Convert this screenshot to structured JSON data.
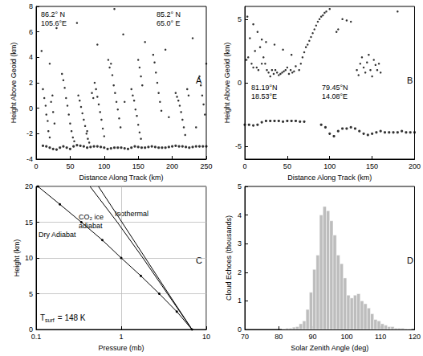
{
  "chart_data": [
    {
      "type": "scatter",
      "label": "A",
      "xlabel": "Distance Along Track (km)",
      "ylabel": "Height Above Geoid (km)",
      "xlim": [
        0,
        250
      ],
      "xticks": [
        0,
        50,
        100,
        150,
        200,
        250
      ],
      "ylim": [
        -4,
        8
      ],
      "yticks": [
        -4,
        -2,
        0,
        2,
        4,
        6,
        8
      ],
      "annotations": [
        "86.2° N\n105.6°E",
        "85.2° N\n65.0° E"
      ],
      "color": "#000000",
      "marker": "circle",
      "series": [
        {
          "x": [
            8,
            10,
            12,
            14,
            15,
            17,
            18,
            20,
            22,
            24,
            25,
            27,
            38,
            40,
            42,
            44,
            46,
            48,
            50,
            52,
            54,
            56,
            62,
            64,
            66,
            68,
            70,
            72,
            74,
            76,
            78,
            82,
            84,
            86,
            88,
            90,
            92,
            94,
            96,
            98,
            100,
            106,
            108,
            110,
            112,
            114,
            116,
            118,
            120,
            122,
            124,
            140,
            142,
            144,
            146,
            148,
            150,
            152,
            154,
            150,
            152,
            154,
            156,
            172,
            174,
            176,
            178,
            180,
            182,
            184,
            205,
            207,
            209,
            211,
            213,
            215,
            217,
            219,
            222,
            224,
            240,
            242,
            244,
            246,
            248,
            250,
            30,
            60,
            115,
            128,
            160,
            190,
            230,
            90,
            20,
            75,
            130,
            195,
            235
          ],
          "y": [
            4.5,
            1.5,
            0.8,
            0.2,
            -0.5,
            -1,
            -1.8,
            -2.3,
            0.5,
            1.0,
            -0.3,
            -1.2,
            2.7,
            2.2,
            1.6,
            0.8,
            0.2,
            -0.5,
            -1.2,
            -1.8,
            -2.3,
            -2.6,
            1.0,
            0.6,
            0.1,
            -0.4,
            -0.9,
            -1.4,
            -2.0,
            -2.4,
            -2.7,
            1.2,
            0.8,
            2.0,
            1.5,
            0.9,
            0.3,
            -0.3,
            -0.9,
            -1.6,
            -2.2,
            3.8,
            3.2,
            3.5,
            2.6,
            1.8,
            1.2,
            0.5,
            -0.1,
            -0.8,
            -1.5,
            1.5,
            1.0,
            0.6,
            -0.1,
            -0.6,
            -1.3,
            -1.9,
            -2.4,
            3.8,
            3.2,
            2.5,
            1.8,
            4.2,
            3.6,
            2.8,
            2.0,
            1.2,
            0.5,
            -0.2,
            1.2,
            0.9,
            0.6,
            0.2,
            -0.3,
            -0.9,
            -1.5,
            -2.1,
            1.5,
            1.0,
            2.5,
            1.8,
            1.0,
            0.3,
            -0.5,
            3.5,
            6.3,
            6.7,
            7.8,
            5.8,
            5.2,
            4.6,
            5.5,
            5.0,
            3.5,
            -1.8,
            0.5,
            -0.7,
            -1.5
          ]
        },
        {
          "x": [
            10,
            15,
            20,
            25,
            30,
            35,
            40,
            45,
            50,
            55,
            60,
            65,
            70,
            75,
            80,
            85,
            90,
            95,
            100,
            105,
            110,
            115,
            120,
            125,
            130,
            135,
            140,
            145,
            150,
            155,
            160,
            165,
            170,
            175,
            180,
            185,
            190,
            195,
            200,
            205,
            210,
            215,
            220,
            225,
            230,
            235,
            240,
            245,
            250
          ],
          "y": [
            -2.95,
            -3.0,
            -3.1,
            -3.2,
            -3.25,
            -3.1,
            -3.0,
            -3.1,
            -3.2,
            -3.0,
            -2.9,
            -2.95,
            -3.0,
            -3.1,
            -3.05,
            -3.0,
            -3.0,
            -3.05,
            -3.1,
            -3.2,
            -3.15,
            -3.1,
            -3.1,
            -3.1,
            -3.15,
            -3.2,
            -3.1,
            -3.0,
            -3.05,
            -3.1,
            -3.1,
            -3.05,
            -3.0,
            -3.05,
            -3.1,
            -3.1,
            -3.1,
            -3.05,
            -3.0,
            -2.95,
            -3.0,
            -3.0,
            -3.05,
            -3.1,
            -3.05,
            -3.0,
            -3.0,
            -3.0,
            -3.0
          ]
        }
      ]
    },
    {
      "type": "scatter",
      "label": "B",
      "xlabel": "Distance Along Track (km)",
      "ylabel": "Height Above Geoid (km)",
      "xlim": [
        0,
        200
      ],
      "xticks": [
        0,
        50,
        100,
        150,
        200
      ],
      "ylim": [
        -6,
        6
      ],
      "yticks": [
        -5,
        0,
        5
      ],
      "annotations": [
        "81.19°N\n18.53°E",
        "79.45°N\n14.08°E"
      ],
      "color": "#000000",
      "marker": "circle",
      "series": [
        {
          "x": [
            2,
            4,
            6,
            8,
            10,
            12,
            14,
            16,
            18,
            20,
            22,
            24,
            26,
            28,
            30,
            32,
            34,
            36,
            38,
            40,
            42,
            44,
            46,
            48,
            50,
            52,
            54,
            56,
            58,
            60,
            10,
            15,
            20,
            25,
            35,
            45,
            55,
            3,
            64,
            66,
            68,
            70,
            72,
            74,
            76,
            78,
            80,
            82,
            84,
            86,
            88,
            90,
            92,
            94,
            96,
            100,
            108,
            110,
            115,
            120,
            125,
            132,
            134,
            136,
            138,
            140,
            142,
            144,
            146,
            148,
            150,
            152,
            154,
            156,
            158,
            160,
            180
          ],
          "y": [
            1.8,
            2.0,
            3.5,
            1.5,
            1.2,
            2.5,
            1.2,
            1.0,
            2.8,
            1.5,
            2.0,
            1.5,
            1.0,
            0.8,
            0.5,
            1.0,
            0.7,
            1.0,
            0.8,
            0.6,
            0.7,
            0.8,
            0.9,
            1.0,
            1.2,
            0.7,
            1.0,
            0.8,
            0.9,
            1.3,
            4.6,
            4.0,
            3.4,
            3.2,
            3.0,
            2.6,
            2.2,
            5.2,
            1.0,
            1.5,
            2.0,
            2.4,
            2.8,
            3.0,
            3.3,
            3.6,
            3.9,
            4.2,
            4.5,
            4.8,
            5.0,
            5.2,
            5.3,
            5.5,
            5.6,
            5.8,
            4.0,
            4.2,
            5.0,
            4.9,
            4.8,
            1.0,
            0.6,
            1.5,
            2.0,
            1.2,
            0.8,
            1.6,
            2.2,
            1.0,
            0.5,
            1.8,
            1.4,
            1.0,
            1.5,
            0.8,
            5.6
          ]
        },
        {
          "x": [
            0,
            5,
            10,
            15,
            20,
            25,
            30,
            35,
            40,
            45,
            50,
            55,
            60,
            65,
            70,
            90,
            95,
            100,
            105,
            110,
            115,
            120,
            125,
            130,
            135,
            140,
            145,
            150,
            155,
            160,
            165,
            170,
            175,
            180,
            185,
            190,
            195,
            200
          ],
          "y": [
            -3.3,
            -3.3,
            -3.35,
            -3.3,
            -3.1,
            -3.0,
            -3.0,
            -3.0,
            -3.0,
            -3.05,
            -3.0,
            -3.0,
            -3.0,
            -3.05,
            -3.05,
            -3.3,
            -3.5,
            -4.0,
            -4.2,
            -3.8,
            -3.6,
            -3.6,
            -3.5,
            -3.6,
            -3.8,
            -4.0,
            -4.1,
            -4.0,
            -3.9,
            -3.8,
            -3.9,
            -3.9,
            -3.9,
            -3.9,
            -3.8,
            -3.9,
            -3.9,
            -3.9
          ]
        }
      ]
    },
    {
      "type": "line",
      "label": "C",
      "xlabel": "Pressure (mb)",
      "ylabel": "Height (km)",
      "log": "x",
      "grid": true,
      "xlim": [
        0.1,
        10
      ],
      "xticks": [
        0.1,
        1,
        10
      ],
      "ylim": [
        0,
        20
      ],
      "yticks": [
        0,
        5,
        10,
        15,
        20
      ],
      "note": {
        "text": "T",
        "subscript": "surf",
        "rest": " = 148 K"
      },
      "color": "#000000",
      "line_style": "solid",
      "series": [
        {
          "name": "Dry Adiabat",
          "marker": "circle",
          "x": [
            6.8,
            4.5,
            2.8,
            1.7,
            1.0,
            0.6,
            0.34,
            0.19,
            0.105
          ],
          "y": [
            0,
            2.5,
            5,
            7.5,
            10,
            12.5,
            15,
            17.5,
            20
          ]
        },
        {
          "name": "CO₂ ice\nadiabat",
          "marker": "none",
          "x": [
            6.8,
            3.5,
            1.8,
            0.9,
            0.43
          ],
          "y": [
            0,
            5,
            10,
            15,
            20
          ]
        },
        {
          "name": "Isothermal",
          "marker": "none",
          "x": [
            6.8,
            3.6,
            1.92,
            1.02,
            0.54
          ],
          "y": [
            0,
            5,
            10,
            15,
            20
          ]
        }
      ]
    },
    {
      "type": "histogram",
      "label": "D",
      "xlabel": "Solar Zenith Angle (deg)",
      "ylabel": "Cloud Echoes (thousands)",
      "xlim": [
        70,
        120
      ],
      "xticks": [
        70,
        80,
        90,
        100,
        110,
        120
      ],
      "ylim": [
        0,
        5
      ],
      "yticks": [
        0,
        1,
        2,
        3,
        4,
        5
      ],
      "color": "#bdbdbd",
      "bins": [
        81,
        82,
        83,
        84,
        85,
        86,
        87,
        88,
        89,
        90,
        91,
        92,
        93,
        94,
        95,
        96,
        97,
        98,
        99,
        100,
        101,
        102,
        103,
        104,
        105,
        106,
        107,
        108,
        109,
        110,
        111,
        112,
        113,
        114,
        115,
        116,
        117,
        118,
        119
      ],
      "counts": [
        0.03,
        0.05,
        0.05,
        0.08,
        0.1,
        0.2,
        0.3,
        0.7,
        1.3,
        2.1,
        2.6,
        4.0,
        4.3,
        4.15,
        3.8,
        3.3,
        2.6,
        2.3,
        1.8,
        1.2,
        1.1,
        1.2,
        1.25,
        1.0,
        0.9,
        0.75,
        0.55,
        0.35,
        0.3,
        0.2,
        0.15,
        0.1,
        0.1,
        0.05,
        0.05,
        0.05,
        0.03,
        0.02
      ]
    }
  ]
}
